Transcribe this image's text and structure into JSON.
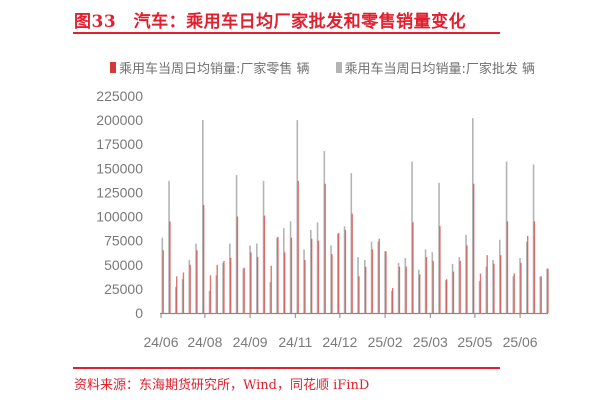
{
  "header": {
    "title": "图33　汽车：乘用车日均厂家批发和零售销量变化"
  },
  "footer": {
    "source": "资料来源：东海期货研究所，Wind，同花顺 iFinD"
  },
  "colors": {
    "accent": "#e0202e",
    "retail": "#d03a3a",
    "wholesale": "#b4b4b4"
  },
  "chart_data": {
    "type": "bar",
    "title": "",
    "xlabel": "",
    "ylabel": "",
    "ylim": [
      0,
      225000
    ],
    "yticks": [
      0,
      25000,
      50000,
      75000,
      100000,
      125000,
      150000,
      175000,
      200000,
      225000
    ],
    "xticks": [
      {
        "label": "24/06",
        "week": 0
      },
      {
        "label": "24/08",
        "week": 6.5
      },
      {
        "label": "24/09",
        "week": 13.2
      },
      {
        "label": "24/11",
        "week": 19.9
      },
      {
        "label": "24/12",
        "week": 26.5
      },
      {
        "label": "25/02",
        "week": 33.2
      },
      {
        "label": "25/03",
        "week": 39.9
      },
      {
        "label": "25/05",
        "week": 46.5
      },
      {
        "label": "25/06",
        "week": 53.2
      }
    ],
    "legend_position": "top",
    "grid": false,
    "series": [
      {
        "name": "乘用车当周日均销量:厂家零售 辆",
        "color": "#d03a3a",
        "values": [
          65000,
          95000,
          38000,
          42000,
          50000,
          65000,
          112000,
          39000,
          50000,
          54000,
          57000,
          100000,
          47000,
          63000,
          58000,
          101000,
          49000,
          79000,
          63000,
          78000,
          137000,
          55000,
          77000,
          75000,
          134000,
          61000,
          83000,
          86000,
          103000,
          38000,
          48000,
          66000,
          77000,
          64000,
          26000,
          48000,
          48000,
          94000,
          40000,
          58000,
          54000,
          90000,
          35000,
          43000,
          54000,
          70000,
          134000,
          41000,
          60000,
          51000,
          60000,
          95000,
          41000,
          52000,
          80000,
          95000,
          38000,
          46000
        ]
      },
      {
        "name": "乘用车当周日均销量:厂家批发 辆",
        "color": "#b4b4b4",
        "values": [
          78000,
          137000,
          27000,
          35000,
          55000,
          72000,
          200000,
          23000,
          39000,
          52000,
          72000,
          143000,
          46000,
          70000,
          72000,
          137000,
          32000,
          78000,
          88000,
          95000,
          200000,
          66000,
          86000,
          94000,
          168000,
          70000,
          82000,
          90000,
          145000,
          58000,
          55000,
          74000,
          74000,
          64000,
          23000,
          52000,
          57000,
          157000,
          45000,
          66000,
          63000,
          135000,
          34000,
          51000,
          58000,
          81000,
          202000,
          33000,
          48000,
          55000,
          76000,
          157000,
          38000,
          57000,
          74000,
          154000,
          38000,
          46000
        ]
      }
    ]
  }
}
